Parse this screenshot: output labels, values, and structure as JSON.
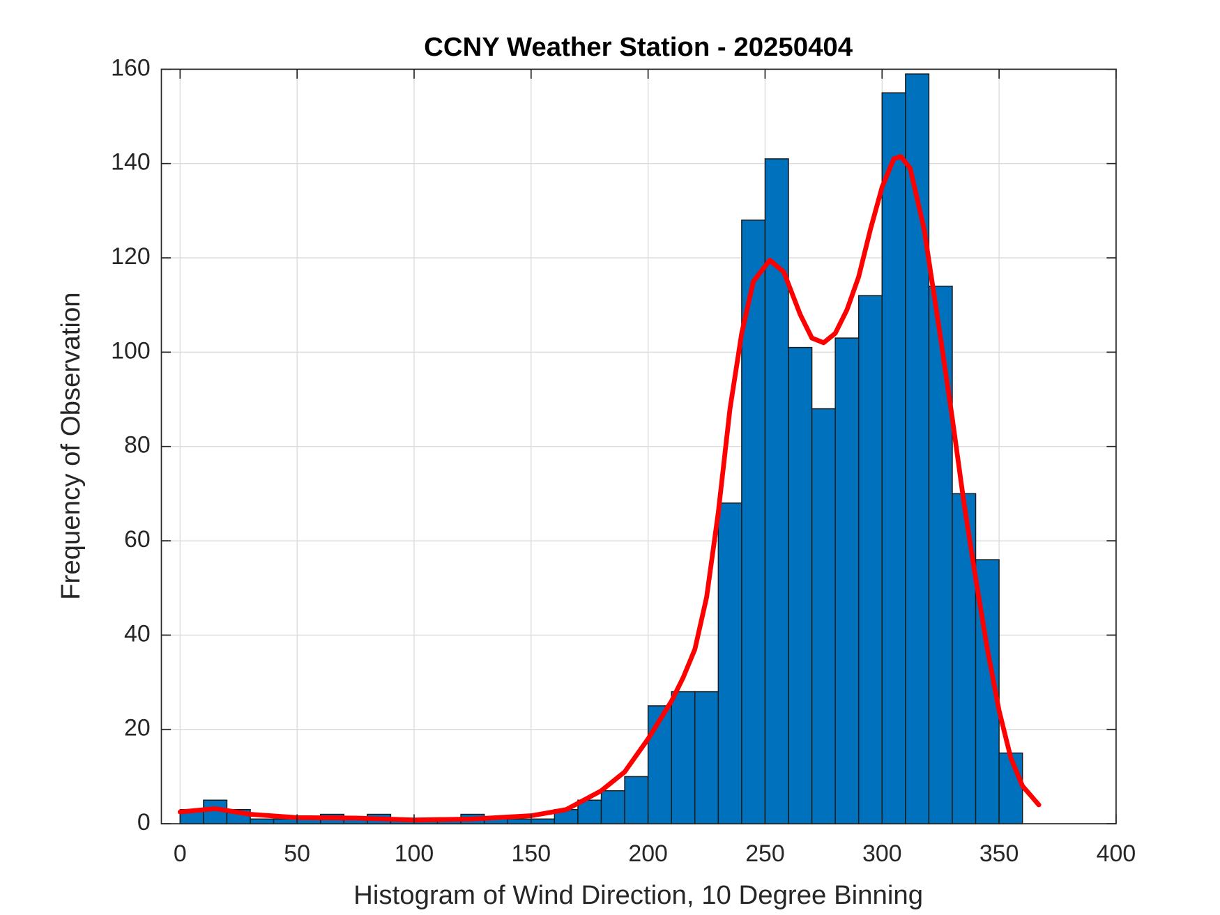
{
  "chart_data": {
    "type": "histogram",
    "title": "CCNY Weather Station - 20250404",
    "xlabel": "Histogram of Wind Direction, 10 Degree Binning",
    "ylabel": "Frequency of Observation",
    "bins": [
      0,
      10,
      20,
      30,
      40,
      50,
      60,
      70,
      80,
      90,
      100,
      110,
      120,
      130,
      140,
      150,
      160,
      170,
      180,
      190,
      200,
      210,
      220,
      230,
      240,
      250,
      260,
      270,
      280,
      290,
      300,
      310,
      320,
      330,
      340,
      350,
      360
    ],
    "counts": [
      3,
      5,
      3,
      1,
      1,
      1,
      2,
      1,
      2,
      1,
      1,
      1,
      2,
      1,
      1,
      1,
      3,
      5,
      7,
      10,
      25,
      28,
      28,
      68,
      128,
      141,
      101,
      88,
      103,
      112,
      155,
      159,
      114,
      70,
      56,
      15
    ],
    "color": "#0072bd",
    "fit": {
      "color": "#ff0000",
      "x": [
        0,
        15,
        30,
        50,
        75,
        100,
        125,
        150,
        165,
        180,
        190,
        200,
        210,
        215,
        220,
        225,
        230,
        235,
        240,
        245,
        252,
        258,
        265,
        270,
        275,
        280,
        285,
        290,
        295,
        300,
        305,
        308,
        312,
        318,
        325,
        330,
        335,
        340,
        345,
        350,
        355,
        360,
        367
      ],
      "values": [
        2.5,
        3.2,
        2,
        1.3,
        1.2,
        0.8,
        1,
        1.7,
        3,
        7,
        11,
        18,
        26,
        31,
        37,
        48,
        66,
        88,
        104,
        115,
        119.5,
        117,
        108,
        103,
        102,
        104,
        109,
        116,
        126,
        135,
        141,
        141.5,
        139,
        126,
        103,
        86,
        68,
        52,
        37,
        24,
        14,
        8,
        4
      ]
    },
    "xlim": [
      -8,
      400
    ],
    "xticks": [
      0,
      50,
      100,
      150,
      200,
      250,
      300,
      350,
      400
    ],
    "ylim": [
      0,
      160
    ],
    "yticks": [
      0,
      20,
      40,
      60,
      80,
      100,
      120,
      140,
      160
    ],
    "grid": true
  }
}
